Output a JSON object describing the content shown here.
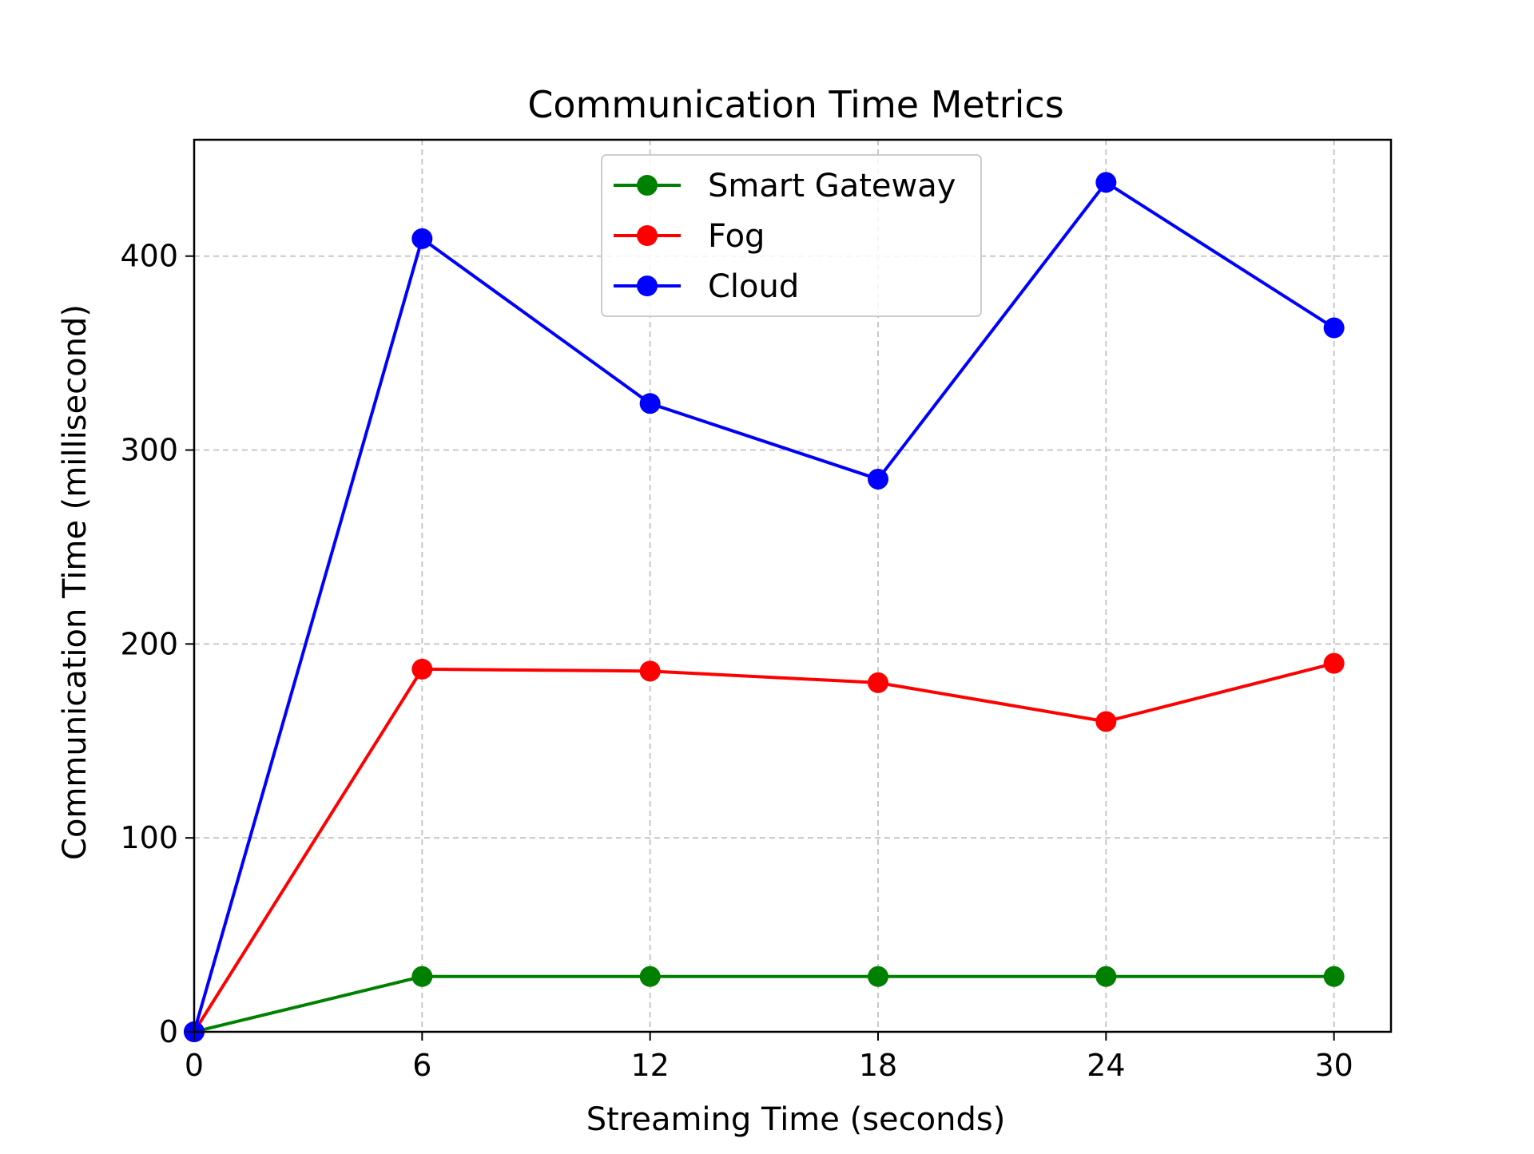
{
  "chart_data": {
    "type": "line",
    "title": "Communication Time Metrics",
    "xlabel": "Streaming Time (seconds)",
    "ylabel": "Communication Time (millisecond)",
    "x": [
      0,
      6,
      12,
      18,
      24,
      30
    ],
    "xticks": [
      "0",
      "6",
      "12",
      "18",
      "24",
      "30"
    ],
    "yticks": [
      "0",
      "100",
      "200",
      "300",
      "400"
    ],
    "xlim": [
      0,
      31.5
    ],
    "ylim": [
      0,
      460
    ],
    "grid": true,
    "legend_position": "top-center",
    "series": [
      {
        "name": "Smart Gateway",
        "color": "#008000",
        "values": [
          0,
          28.5,
          28.5,
          28.5,
          28.5,
          28.5
        ]
      },
      {
        "name": "Fog",
        "color": "#ff0000",
        "values": [
          0,
          187,
          186,
          180,
          160,
          190
        ]
      },
      {
        "name": "Cloud",
        "color": "#0000ff",
        "values": [
          0,
          409,
          324,
          285,
          438,
          363
        ]
      }
    ]
  }
}
